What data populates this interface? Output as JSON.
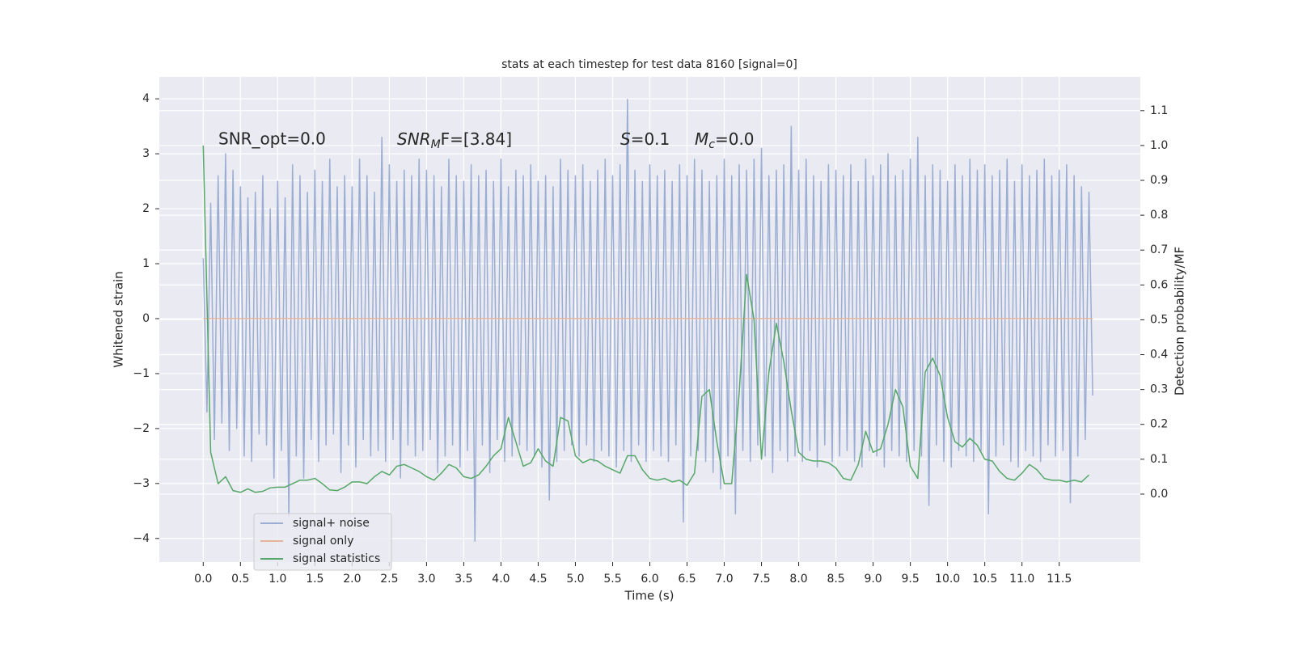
{
  "chart_data": {
    "type": "line",
    "title": "stats at each timestep for test data 8160 [signal=0]",
    "xlabel": "Time (s)",
    "ylabel": "Whitened strain",
    "y2label": "Detection probability/MF",
    "xlim": [
      -0.59,
      12.59
    ],
    "ylim": [
      -4.43,
      4.4
    ],
    "y2lim": [
      -0.195,
      1.197
    ],
    "xticks": [
      {
        "value": 0,
        "label": "0.0"
      },
      {
        "value": 0.5,
        "label": "0.5"
      },
      {
        "value": 1,
        "label": "1.0"
      },
      {
        "value": 1.5,
        "label": "1.5"
      },
      {
        "value": 2,
        "label": "2.0"
      },
      {
        "value": 2.5,
        "label": "2.5"
      },
      {
        "value": 3,
        "label": "3.0"
      },
      {
        "value": 3.5,
        "label": "3.5"
      },
      {
        "value": 4,
        "label": "4.0"
      },
      {
        "value": 4.5,
        "label": "4.5"
      },
      {
        "value": 5,
        "label": "5.0"
      },
      {
        "value": 5.5,
        "label": "5.5"
      },
      {
        "value": 6,
        "label": "6.0"
      },
      {
        "value": 6.5,
        "label": "6.5"
      },
      {
        "value": 7,
        "label": "7.0"
      },
      {
        "value": 7.5,
        "label": "7.5"
      },
      {
        "value": 8,
        "label": "8.0"
      },
      {
        "value": 8.5,
        "label": "8.5"
      },
      {
        "value": 9,
        "label": "9.0"
      },
      {
        "value": 9.5,
        "label": "9.5"
      },
      {
        "value": 10,
        "label": "10.0"
      },
      {
        "value": 10.5,
        "label": "10.5"
      },
      {
        "value": 11,
        "label": "11.0"
      },
      {
        "value": 11.5,
        "label": "11.5"
      }
    ],
    "yticks": [
      {
        "value": -4,
        "label": "−4"
      },
      {
        "value": -3,
        "label": "−3"
      },
      {
        "value": -2,
        "label": "−2"
      },
      {
        "value": -1,
        "label": "−1"
      },
      0,
      1,
      2,
      3,
      4
    ],
    "y2ticks": [
      {
        "value": 0,
        "label": "0.0"
      },
      {
        "value": 0.1,
        "label": "0.1"
      },
      {
        "value": 0.2,
        "label": "0.2"
      },
      {
        "value": 0.3,
        "label": "0.3"
      },
      {
        "value": 0.4,
        "label": "0.4"
      },
      {
        "value": 0.5,
        "label": "0.5"
      },
      {
        "value": 0.6,
        "label": "0.6"
      },
      {
        "value": 0.7,
        "label": "0.7"
      },
      {
        "value": 0.8,
        "label": "0.8"
      },
      {
        "value": 0.9,
        "label": "0.9"
      },
      {
        "value": 1,
        "label": "1.0"
      },
      {
        "value": 1.1,
        "label": "1.1"
      }
    ],
    "grid": true,
    "annotations": [
      {
        "text": "SNR_opt=0.0"
      },
      {
        "main": "SNR",
        "sub": "M",
        "tail": "F=[3.84]"
      },
      {
        "main": "S",
        "tail": "=0.1"
      },
      {
        "main": "M",
        "sub": "c",
        "tail": "=0.0"
      }
    ],
    "series": [
      {
        "name": "signal+ noise",
        "color": "#9aadd2",
        "x": [
          0,
          0.05,
          0.1,
          0.15,
          0.2,
          0.25,
          0.3,
          0.35,
          0.4,
          0.45,
          0.5,
          0.55,
          0.6,
          0.65,
          0.7,
          0.75,
          0.8,
          0.85,
          0.9,
          0.95,
          1,
          1.05,
          1.1,
          1.15,
          1.2,
          1.25,
          1.3,
          1.35,
          1.4,
          1.45,
          1.5,
          1.55,
          1.6,
          1.65,
          1.7,
          1.75,
          1.8,
          1.85,
          1.9,
          1.95,
          2,
          2.05,
          2.1,
          2.15,
          2.2,
          2.25,
          2.3,
          2.35,
          2.4,
          2.45,
          2.5,
          2.55,
          2.6,
          2.65,
          2.7,
          2.75,
          2.8,
          2.85,
          2.9,
          2.95,
          3,
          3.05,
          3.1,
          3.15,
          3.2,
          3.25,
          3.3,
          3.35,
          3.4,
          3.45,
          3.5,
          3.55,
          3.6,
          3.65,
          3.7,
          3.75,
          3.8,
          3.85,
          3.9,
          3.95,
          4,
          4.05,
          4.1,
          4.15,
          4.2,
          4.25,
          4.3,
          4.35,
          4.4,
          4.45,
          4.5,
          4.55,
          4.6,
          4.65,
          4.7,
          4.75,
          4.8,
          4.85,
          4.9,
          4.95,
          5,
          5.05,
          5.1,
          5.15,
          5.2,
          5.25,
          5.3,
          5.35,
          5.4,
          5.45,
          5.5,
          5.55,
          5.6,
          5.65,
          5.7,
          5.75,
          5.8,
          5.85,
          5.9,
          5.95,
          6,
          6.05,
          6.1,
          6.15,
          6.2,
          6.25,
          6.3,
          6.35,
          6.4,
          6.45,
          6.5,
          6.55,
          6.6,
          6.65,
          6.7,
          6.75,
          6.8,
          6.85,
          6.9,
          6.95,
          7,
          7.05,
          7.1,
          7.15,
          7.2,
          7.25,
          7.3,
          7.35,
          7.4,
          7.45,
          7.5,
          7.55,
          7.6,
          7.65,
          7.7,
          7.75,
          7.8,
          7.85,
          7.9,
          7.95,
          8,
          8.05,
          8.1,
          8.15,
          8.2,
          8.25,
          8.3,
          8.35,
          8.4,
          8.45,
          8.5,
          8.55,
          8.6,
          8.65,
          8.7,
          8.75,
          8.8,
          8.85,
          8.9,
          8.95,
          9,
          9.05,
          9.1,
          9.15,
          9.2,
          9.25,
          9.3,
          9.35,
          9.4,
          9.45,
          9.5,
          9.55,
          9.6,
          9.65,
          9.7,
          9.75,
          9.8,
          9.85,
          9.9,
          9.95,
          10,
          10.05,
          10.1,
          10.15,
          10.2,
          10.25,
          10.3,
          10.35,
          10.4,
          10.45,
          10.5,
          10.55,
          10.6,
          10.65,
          10.7,
          10.75,
          10.8,
          10.85,
          10.9,
          10.95,
          11,
          11.05,
          11.1,
          11.15,
          11.2,
          11.25,
          11.3,
          11.35,
          11.4,
          11.45,
          11.5,
          11.55,
          11.6,
          11.65,
          11.7,
          11.75,
          11.8,
          11.85,
          11.9,
          11.95
        ],
        "values": [
          1.1,
          -1.7,
          2.1,
          -2.2,
          2.6,
          -1.9,
          3.0,
          -2.4,
          2.7,
          -2.0,
          2.4,
          -2.5,
          2.2,
          -2.6,
          2.3,
          -2.1,
          2.6,
          -2.3,
          2.0,
          -2.9,
          2.5,
          -2.4,
          2.2,
          -3.6,
          2.8,
          -2.5,
          2.6,
          -2.9,
          2.3,
          -2.2,
          2.7,
          -2.6,
          2.5,
          -2.3,
          2.9,
          -2.1,
          2.4,
          -2.8,
          2.6,
          -2.3,
          2.4,
          -2.7,
          2.9,
          -2.2,
          2.6,
          -2.5,
          2.3,
          -2.4,
          3.3,
          -2.6,
          2.8,
          -2.2,
          2.5,
          -2.9,
          2.7,
          -2.3,
          2.6,
          -2.5,
          2.9,
          -2.4,
          2.7,
          -2.2,
          2.6,
          -2.8,
          2.4,
          -2.5,
          2.9,
          -2.3,
          2.6,
          -2.7,
          2.5,
          -2.4,
          2.8,
          -4.05,
          2.6,
          -2.3,
          2.7,
          -2.8,
          2.5,
          -2.2,
          2.9,
          -2.6,
          2.4,
          -2.5,
          2.7,
          -2.3,
          2.6,
          -2.4,
          2.8,
          -2.5,
          2.5,
          -2.7,
          2.6,
          -3.3,
          2.4,
          -2.6,
          2.9,
          -2.4,
          2.7,
          -2.3,
          2.6,
          -2.5,
          2.8,
          -2.3,
          2.5,
          -2.6,
          2.7,
          -2.4,
          2.9,
          -2.5,
          2.6,
          -2.7,
          2.8,
          -2.4,
          3.99,
          -2.6,
          2.7,
          -2.3,
          2.5,
          -2.6,
          2.8,
          -2.4,
          2.6,
          -2.5,
          2.7,
          -2.6,
          2.5,
          -2.3,
          2.8,
          -3.7,
          2.6,
          -2.5,
          2.9,
          -2.4,
          2.7,
          -2.6,
          2.5,
          -2.8,
          2.6,
          -3.1,
          2.9,
          -2.5,
          2.6,
          -3.55,
          2.8,
          -2.4,
          2.7,
          -2.6,
          2.9,
          -2.3,
          3.1,
          -2.5,
          2.6,
          -2.8,
          2.7,
          -2.4,
          2.8,
          -2.6,
          3.5,
          -2.5,
          2.7,
          -2.6,
          2.9,
          -2.4,
          2.6,
          -2.7,
          2.5,
          -2.3,
          2.8,
          -2.6,
          2.7,
          -2.5,
          2.6,
          -2.4,
          2.8,
          -2.6,
          2.5,
          -2.7,
          2.9,
          -2.4,
          2.6,
          -2.5,
          2.8,
          -2.7,
          3.0,
          -2.4,
          2.6,
          -2.5,
          2.7,
          -2.6,
          2.9,
          -2.4,
          3.3,
          -2.5,
          2.6,
          -3.4,
          2.8,
          -2.3,
          2.7,
          -2.6,
          2.5,
          -2.7,
          2.8,
          -2.4,
          2.6,
          -2.5,
          2.9,
          -2.6,
          2.7,
          -2.4,
          2.8,
          -3.55,
          2.6,
          -2.5,
          2.7,
          -2.3,
          2.9,
          -2.6,
          2.5,
          -2.7,
          2.8,
          -2.4,
          2.6,
          -2.5,
          2.7,
          -2.6,
          2.9,
          -2.3,
          2.6,
          -2.5,
          2.7,
          -2.4,
          2.8,
          -3.35,
          2.6,
          -2.5,
          2.4,
          -2.2,
          2.3,
          -1.4
        ]
      },
      {
        "name": "signal only",
        "color": "#e6b49b",
        "x": [
          0,
          11.95
        ],
        "values": [
          0,
          0
        ]
      },
      {
        "name": "signal statistics",
        "color": "#55a868",
        "axis": "y2",
        "x": [
          0,
          0.1,
          0.2,
          0.3,
          0.4,
          0.5,
          0.6,
          0.7,
          0.8,
          0.9,
          1,
          1.1,
          1.2,
          1.3,
          1.4,
          1.5,
          1.6,
          1.7,
          1.8,
          1.9,
          2,
          2.1,
          2.2,
          2.3,
          2.4,
          2.5,
          2.6,
          2.7,
          2.8,
          2.9,
          3,
          3.1,
          3.2,
          3.3,
          3.4,
          3.5,
          3.6,
          3.7,
          3.8,
          3.9,
          4,
          4.1,
          4.2,
          4.3,
          4.4,
          4.5,
          4.6,
          4.7,
          4.8,
          4.9,
          5,
          5.1,
          5.2,
          5.3,
          5.4,
          5.5,
          5.6,
          5.7,
          5.8,
          5.9,
          6,
          6.1,
          6.2,
          6.3,
          6.4,
          6.5,
          6.6,
          6.7,
          6.8,
          6.9,
          7,
          7.1,
          7.2,
          7.3,
          7.4,
          7.5,
          7.6,
          7.7,
          7.8,
          7.9,
          8,
          8.1,
          8.2,
          8.3,
          8.4,
          8.5,
          8.6,
          8.7,
          8.8,
          8.9,
          9,
          9.1,
          9.2,
          9.3,
          9.4,
          9.5,
          9.6,
          9.7,
          9.8,
          9.9,
          10,
          10.1,
          10.2,
          10.3,
          10.4,
          10.5,
          10.6,
          10.7,
          10.8,
          10.9,
          11,
          11.1,
          11.2,
          11.3,
          11.4,
          11.5,
          11.6,
          11.7,
          11.8,
          11.9
        ],
        "values": [
          1.0,
          0.12,
          0.03,
          0.05,
          0.01,
          0.005,
          0.015,
          0.005,
          0.008,
          0.018,
          0.02,
          0.02,
          0.03,
          0.04,
          0.04,
          0.045,
          0.03,
          0.012,
          0.01,
          0.02,
          0.035,
          0.035,
          0.03,
          0.05,
          0.065,
          0.055,
          0.08,
          0.085,
          0.075,
          0.065,
          0.05,
          0.04,
          0.06,
          0.085,
          0.075,
          0.05,
          0.045,
          0.055,
          0.08,
          0.11,
          0.13,
          0.22,
          0.15,
          0.08,
          0.09,
          0.13,
          0.095,
          0.08,
          0.22,
          0.21,
          0.11,
          0.09,
          0.1,
          0.095,
          0.08,
          0.07,
          0.06,
          0.11,
          0.11,
          0.07,
          0.045,
          0.04,
          0.045,
          0.035,
          0.04,
          0.025,
          0.06,
          0.28,
          0.3,
          0.15,
          0.03,
          0.03,
          0.29,
          0.63,
          0.5,
          0.1,
          0.35,
          0.49,
          0.38,
          0.24,
          0.12,
          0.1,
          0.095,
          0.095,
          0.09,
          0.075,
          0.045,
          0.04,
          0.085,
          0.18,
          0.12,
          0.13,
          0.2,
          0.3,
          0.25,
          0.08,
          0.045,
          0.35,
          0.39,
          0.34,
          0.22,
          0.15,
          0.135,
          0.16,
          0.14,
          0.1,
          0.095,
          0.065,
          0.045,
          0.04,
          0.06,
          0.085,
          0.07,
          0.045,
          0.04,
          0.04,
          0.035,
          0.04,
          0.035,
          0.055
        ]
      }
    ]
  }
}
